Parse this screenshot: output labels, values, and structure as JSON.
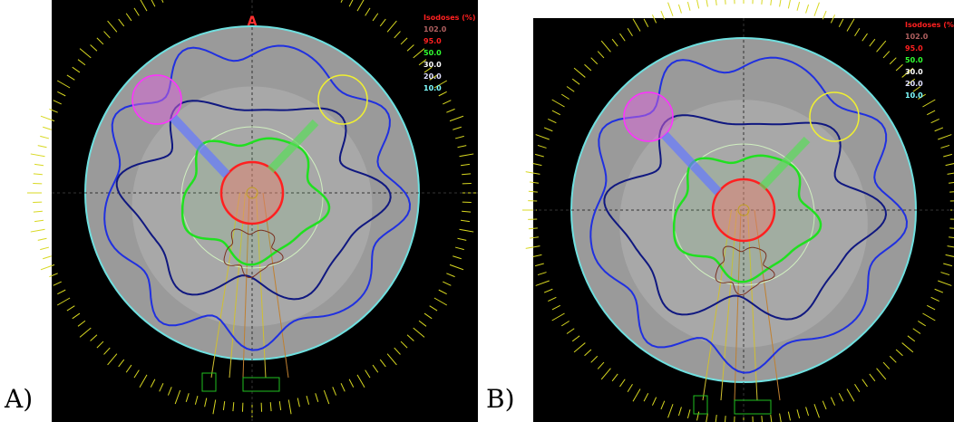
{
  "panels": [
    {
      "label": "A)",
      "marker": "A",
      "legend_title": "Isodoses (%)",
      "isodoses": [
        {
          "label": "102.0",
          "color": "#b06060"
        },
        {
          "label": "95.0",
          "color": "#ff2020"
        },
        {
          "label": "50.0",
          "color": "#30ff30"
        },
        {
          "label": "30.0",
          "color": "#ffffff"
        },
        {
          "label": "20.0",
          "color": "#e0e0ff"
        },
        {
          "label": "10.0",
          "color": "#80ffff"
        }
      ]
    },
    {
      "label": "B)",
      "legend_title": "Isodoses (%)",
      "isodoses": [
        {
          "label": "102.0",
          "color": "#b06060"
        },
        {
          "label": "95.0",
          "color": "#ff2020"
        },
        {
          "label": "50.0",
          "color": "#30ff30"
        },
        {
          "label": "30.0",
          "color": "#ffffff"
        },
        {
          "label": "20.0",
          "color": "#e0e0ff"
        },
        {
          "label": "10.0",
          "color": "#80ffff"
        }
      ]
    }
  ]
}
